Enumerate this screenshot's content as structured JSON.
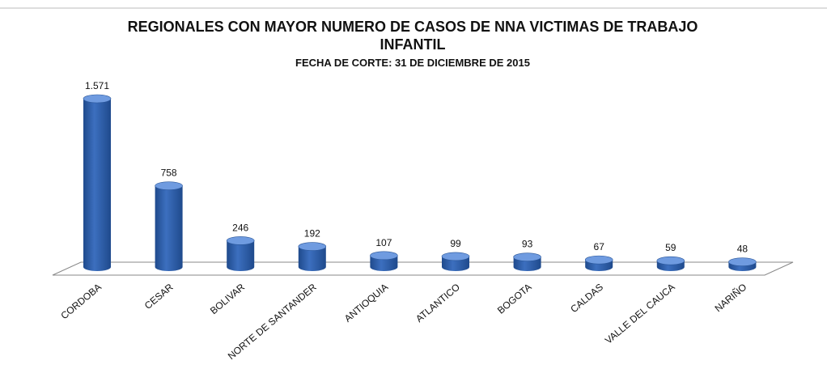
{
  "chart_data": {
    "type": "bar",
    "title": "REGIONALES CON MAYOR NUMERO DE CASOS DE NNA VICTIMAS DE TRABAJO INFANTIL",
    "subtitle": "FECHA DE CORTE: 31 DE DICIEMBRE  DE 2015",
    "categories": [
      "CORDOBA",
      "CESAR",
      "BOLIVAR",
      "NORTE DE SANTANDER",
      "ANTIOQUIA",
      "ATLANTICO",
      "BOGOTA",
      "CALDAS",
      "VALLE DEL CAUCA",
      "NARIÑO"
    ],
    "values": [
      1571,
      758,
      246,
      192,
      107,
      99,
      93,
      67,
      59,
      48
    ],
    "value_labels": [
      "1.571",
      "758",
      "246",
      "192",
      "107",
      "99",
      "93",
      "67",
      "59",
      "48"
    ],
    "color": "#3c6fbf"
  }
}
